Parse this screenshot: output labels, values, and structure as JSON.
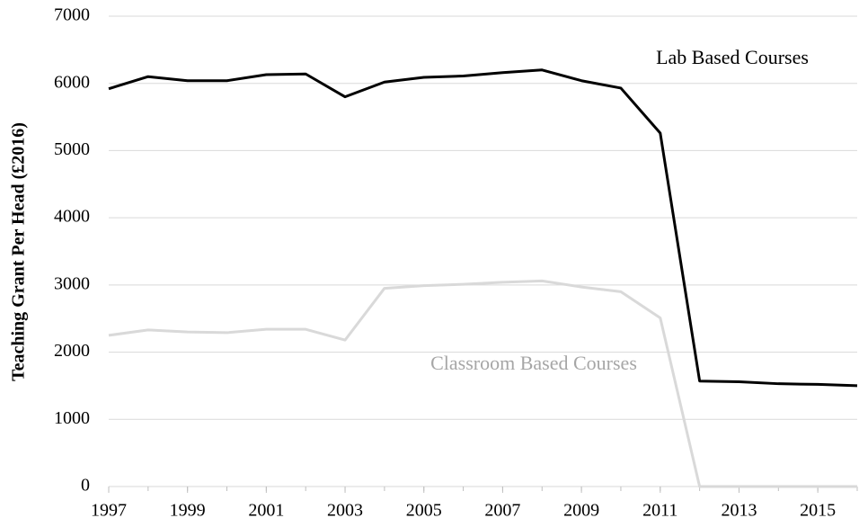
{
  "chart_data": {
    "type": "line",
    "y_label": "Teaching  Grant Per Head (£2016)",
    "x": [
      1997,
      1998,
      1999,
      2000,
      2001,
      2002,
      2003,
      2004,
      2005,
      2006,
      2007,
      2008,
      2009,
      2010,
      2011,
      2012,
      2013,
      2014,
      2015,
      2016
    ],
    "series": [
      {
        "name": "Lab Based Courses",
        "color": "#000000",
        "values": [
          5920,
          6100,
          6040,
          6040,
          6130,
          6140,
          5800,
          6020,
          6090,
          6110,
          6160,
          6200,
          6040,
          5930,
          5260,
          1570,
          1560,
          1530,
          1520,
          1500
        ]
      },
      {
        "name": "Classroom Based Courses",
        "color": "#d9d9d9",
        "values": [
          2250,
          2330,
          2300,
          2290,
          2340,
          2340,
          2180,
          2950,
          2990,
          3010,
          3040,
          3060,
          2970,
          2900,
          2510,
          0,
          0,
          0,
          0,
          0
        ]
      }
    ],
    "xlim": [
      1997,
      2016
    ],
    "xticks": [
      1997,
      1999,
      2001,
      2003,
      2005,
      2007,
      2009,
      2011,
      2013,
      2015
    ],
    "ylim": [
      0,
      7000
    ],
    "yticks": [
      0,
      1000,
      2000,
      3000,
      4000,
      5000,
      6000,
      7000
    ],
    "grid": true
  }
}
